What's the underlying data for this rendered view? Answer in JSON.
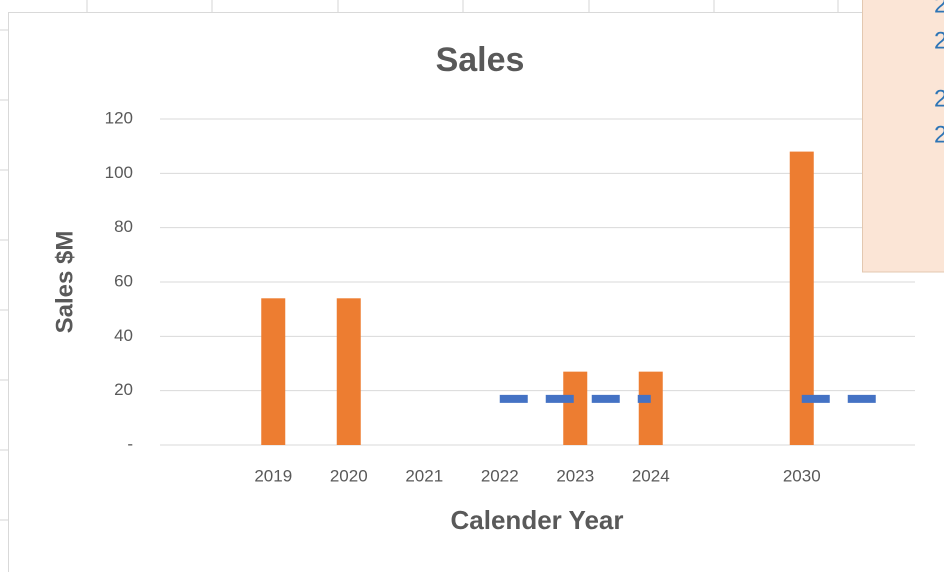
{
  "chart_data": {
    "type": "bar",
    "title": "Sales",
    "x_label": "Calender Year",
    "y_label": "Sales $M",
    "categories": [
      null,
      "2019",
      "2020",
      "2021",
      "2022",
      "2023",
      "2024",
      null,
      "2030",
      null
    ],
    "series": [
      {
        "type": "bar",
        "color": "#ed7d31",
        "values": [
          null,
          54,
          54,
          null,
          null,
          27,
          27,
          null,
          108,
          null
        ]
      },
      {
        "type": "line",
        "color": "#4472c4",
        "dashed": true,
        "values": [
          null,
          null,
          null,
          null,
          17,
          17,
          17,
          null,
          17,
          17
        ]
      }
    ],
    "ylim": [
      0,
      120
    ],
    "yticks": [
      {
        "value": 0,
        "label": "-"
      },
      20,
      40,
      60,
      80,
      100,
      120
    ],
    "grid": true,
    "overlay_text": [
      "2",
      "2",
      "2",
      "2"
    ]
  }
}
